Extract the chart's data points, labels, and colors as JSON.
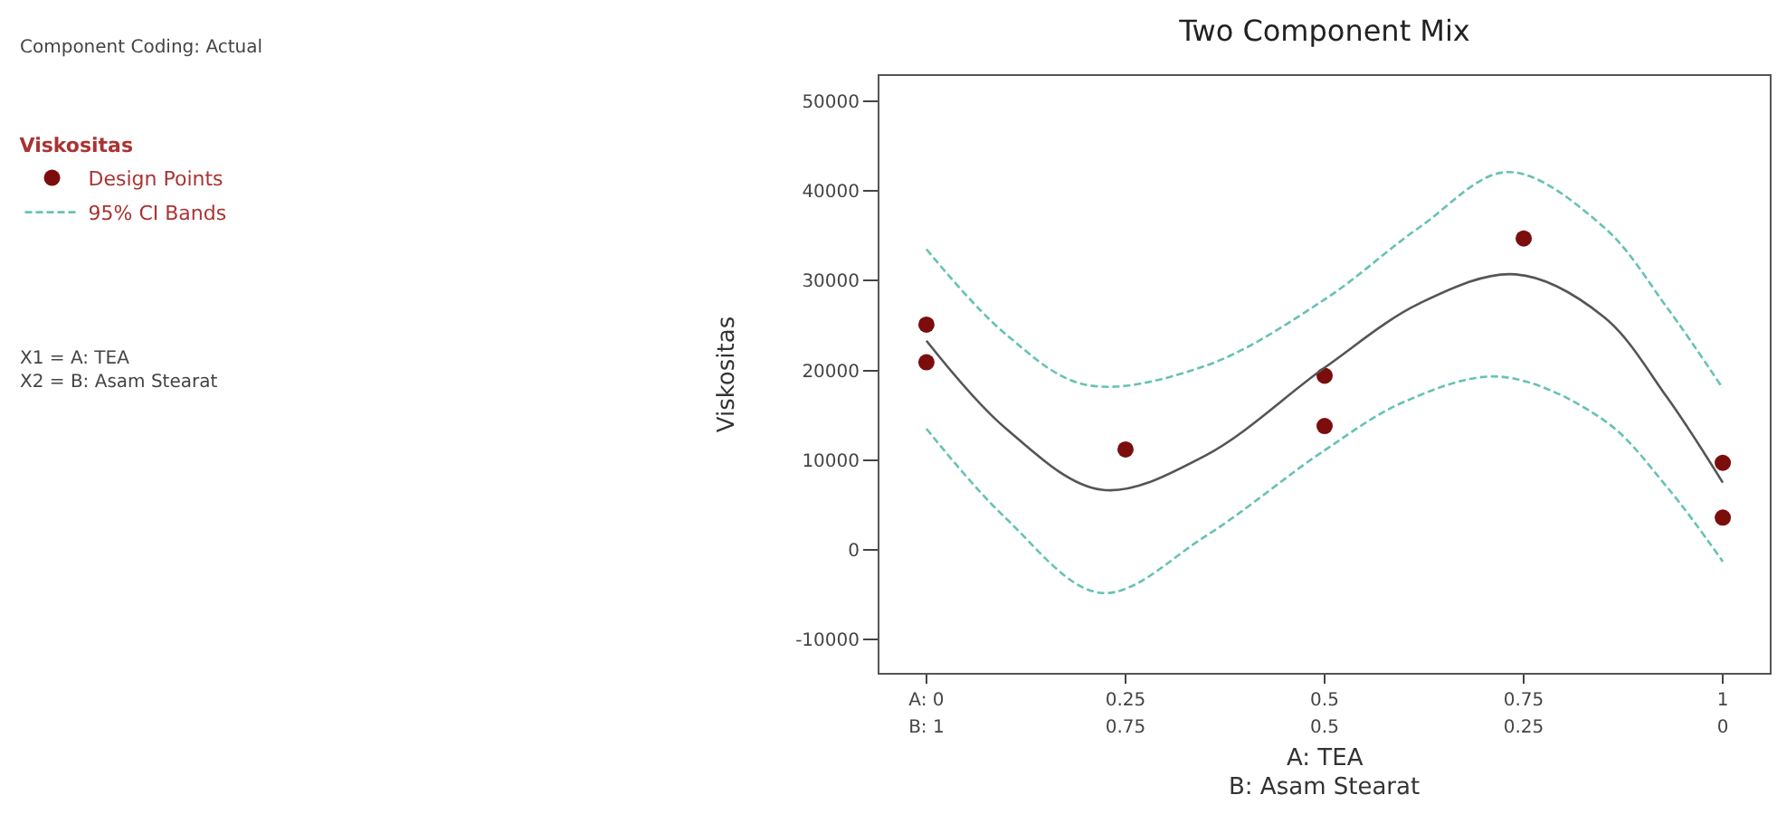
{
  "chart_data": {
    "type": "scatter",
    "title": "Two Component Mix",
    "xlabel": "A: TEA",
    "x2label": "B: Asam Stearat",
    "ylabel": "Viskositas",
    "legend_title": "Viskositas",
    "annotations": [
      "Component Coding: Actual",
      "X1 = A: TEA\nX2 = B: Asam Stearat"
    ],
    "series": [
      {
        "name": "Design Points",
        "color": "#7b0d0d",
        "marker": "circle",
        "x": [
          0,
          0,
          0.25,
          0.5,
          0.5,
          0.75,
          1,
          1
        ],
        "values": [
          25100,
          20900,
          11200,
          19400,
          13800,
          34700,
          9700,
          3600
        ]
      },
      {
        "type": "line",
        "name": "95% CI Bands",
        "color": "#66c2b4",
        "line_style": "dashed",
        "marker": "none",
        "x": [
          0,
          0.1,
          0.2,
          0.35,
          0.5,
          0.62,
          0.73,
          0.85,
          0.93,
          1
        ],
        "values": [
          33500,
          24000,
          18400,
          20500,
          27900,
          36000,
          42100,
          36000,
          27000,
          18000
        ]
      },
      {
        "type": "line",
        "color": "#66c2b4",
        "line_style": "dashed",
        "marker": "none",
        "x": [
          0,
          0.1,
          0.22,
          0.35,
          0.5,
          0.6,
          0.72,
          0.85,
          0.93,
          1
        ],
        "values": [
          13500,
          3500,
          -4800,
          1500,
          11100,
          16500,
          19300,
          14500,
          7000,
          -1300
        ]
      },
      {
        "type": "line",
        "color": "#555555",
        "line_style": "solid",
        "marker": "none",
        "x": [
          0,
          0.1,
          0.22,
          0.35,
          0.5,
          0.62,
          0.74,
          0.85,
          0.93,
          1
        ],
        "values": [
          23300,
          13500,
          6700,
          10500,
          20300,
          27500,
          30700,
          26000,
          17000,
          7500
        ]
      }
    ],
    "xlim": [
      -0.059,
      1.059
    ],
    "xticks": [
      {
        "value": 0,
        "label": "A: 0"
      },
      0.25,
      0.5,
      0.75,
      1
    ],
    "x2lim": [
      1.059,
      -0.059
    ],
    "x2ticks": [
      {
        "value": 1,
        "label": "B: 1"
      },
      0.75,
      0.5,
      0.25,
      0
    ],
    "ylim": [
      -13700,
      52800
    ],
    "yticks": [
      -10000,
      0,
      10000,
      20000,
      30000,
      40000,
      50000
    ],
    "legend": "top left"
  }
}
